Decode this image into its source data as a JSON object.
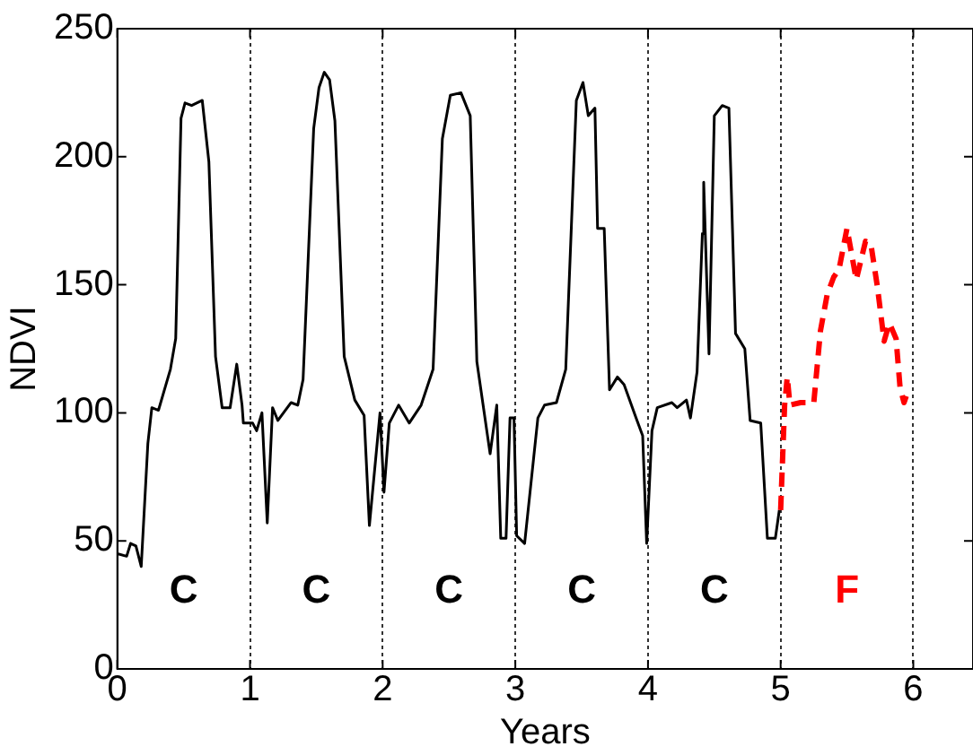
{
  "chart_data": {
    "type": "line",
    "xlabel": "Years",
    "ylabel": "NDVI",
    "xlim": [
      0,
      6.45
    ],
    "ylim": [
      0,
      250
    ],
    "xticks": [
      0,
      1,
      2,
      3,
      4,
      5,
      6
    ],
    "yticks": [
      0,
      50,
      100,
      150,
      200,
      250
    ],
    "grid": "x",
    "legend": false,
    "marker": "none",
    "series": [
      {
        "color": "#000000",
        "line_style": "solid",
        "x": [
          0,
          0.07,
          0.1,
          0.14,
          0.18,
          0.23,
          0.26,
          0.31,
          0.4,
          0.44,
          0.48,
          0.51,
          0.56,
          0.64,
          0.69,
          0.74,
          0.79,
          0.85,
          0.9,
          0.94,
          0.95,
          1.02,
          1.05,
          1.09,
          1.13,
          1.17,
          1.21,
          1.31,
          1.36,
          1.4,
          1.48,
          1.52,
          1.56,
          1.6,
          1.64,
          1.71,
          1.79,
          1.86,
          1.9,
          1.98,
          2.01,
          2.05,
          2.12,
          2.2,
          2.29,
          2.38,
          2.45,
          2.51,
          2.59,
          2.66,
          2.71,
          2.81,
          2.86,
          2.89,
          2.93,
          2.96,
          2.99,
          3.01,
          3.07,
          3.17,
          3.22,
          3.31,
          3.38,
          3.46,
          3.51,
          3.55,
          3.6,
          3.62,
          3.67,
          3.71,
          3.77,
          3.82,
          3.91,
          3.96,
          3.99,
          4.03,
          4.07,
          4.18,
          4.22,
          4.29,
          4.32,
          4.37,
          4.41,
          4.42,
          4.46,
          4.5,
          4.56,
          4.61,
          4.66,
          4.73,
          4.77,
          4.85,
          4.9,
          4.96,
          4.99
        ],
        "values": [
          45,
          44,
          49,
          48,
          40,
          88,
          102,
          101,
          117,
          129,
          215,
          221,
          220,
          222,
          198,
          122,
          102,
          102,
          119,
          103,
          96,
          96,
          93,
          100,
          57,
          102,
          97,
          104,
          103,
          113,
          211,
          227,
          233,
          230,
          214,
          122,
          105,
          99,
          56,
          100,
          69,
          96,
          103,
          96,
          103,
          117,
          207,
          224,
          225,
          216,
          120,
          84,
          103,
          51,
          51,
          98,
          98,
          52,
          49,
          98,
          103,
          104,
          117,
          222,
          229,
          216,
          219,
          172,
          172,
          109,
          114,
          111,
          98,
          91,
          49,
          93,
          102,
          104,
          102,
          105,
          98,
          116,
          170,
          190,
          123,
          216,
          220,
          219,
          131,
          125,
          97,
          96,
          51,
          51,
          62
        ]
      },
      {
        "color": "#ff0000",
        "line_style": "dashed",
        "x": [
          5,
          5.03,
          5.05,
          5.07,
          5.15,
          5.2,
          5.25,
          5.3,
          5.35,
          5.4,
          5.44,
          5.5,
          5.57,
          5.64,
          5.68,
          5.73,
          5.78,
          5.82,
          5.87,
          5.9,
          5.93,
          5.95
        ],
        "values": [
          62,
          103,
          114,
          103,
          104,
          104,
          104,
          132,
          146,
          153,
          156,
          172,
          152,
          167,
          166,
          149,
          128,
          135,
          129,
          110,
          104,
          107
        ]
      }
    ],
    "annotations": [
      "C",
      "C",
      "C",
      "C",
      "C",
      "F"
    ]
  }
}
